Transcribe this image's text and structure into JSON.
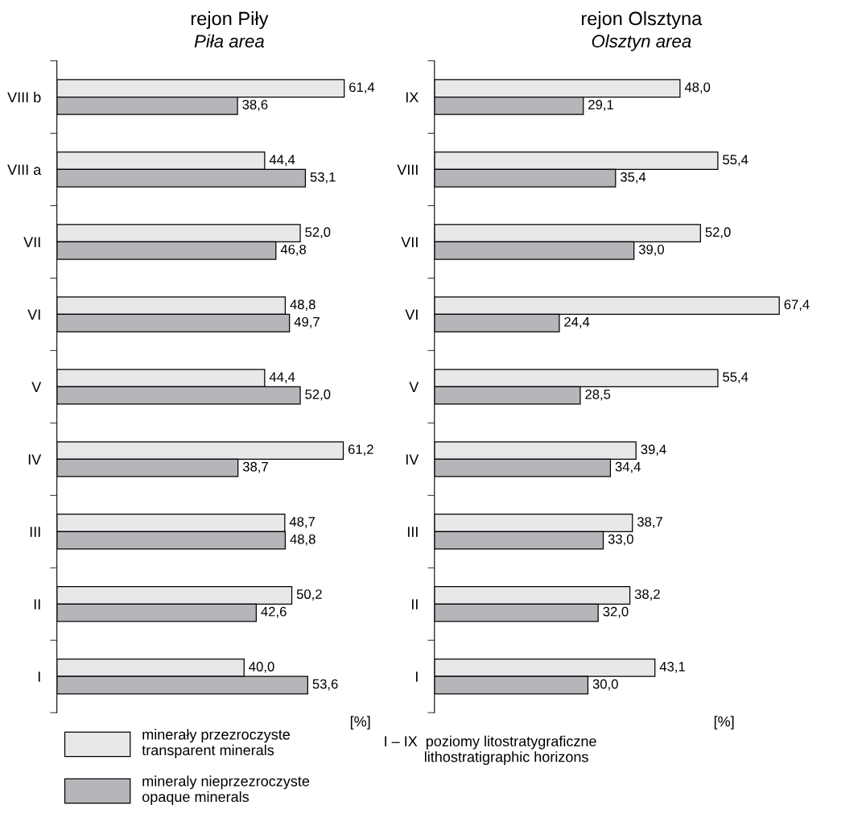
{
  "chart_data": [
    {
      "type": "bar",
      "orientation": "horizontal",
      "title": "rejon Piły",
      "subtitle": "Piła area",
      "xlabel": "[%]",
      "legend": "bottom",
      "grid": false,
      "tick_labels": "y",
      "categories": [
        "VIII b",
        "VIII a",
        "VII",
        "VI",
        "V",
        "IV",
        "III",
        "II",
        "I"
      ],
      "series": [
        {
          "name": "minerały przezroczyste\ntransparent minerals",
          "color": "#e8e8ea",
          "values": [
            61.4,
            44.4,
            52.0,
            48.8,
            44.4,
            61.2,
            48.7,
            50.2,
            40.0
          ],
          "value_labels": [
            "61,4",
            "44,4",
            "52,0",
            "48,8",
            "44,4",
            "61,2",
            "48,7",
            "50,2",
            "40,0"
          ]
        },
        {
          "name": "mineraly nieprzezroczyste\nopaque minerals",
          "color": "#b6b6ba",
          "values": [
            38.6,
            53.1,
            46.8,
            49.7,
            52.0,
            38.7,
            48.8,
            42.6,
            53.6
          ],
          "value_labels": [
            "38,6",
            "53,1",
            "46,8",
            "49,7",
            "52,0",
            "38,7",
            "48,8",
            "42,6",
            "53,6"
          ]
        }
      ]
    },
    {
      "type": "bar",
      "orientation": "horizontal",
      "title": "rejon Olsztyna",
      "subtitle": "Olsztyn area",
      "xlabel": "[%]",
      "grid": false,
      "tick_labels": "y",
      "annotations": [
        "I – IX  poziomy litostratygraficzne\n          lithostratigraphic horizons"
      ],
      "categories": [
        "IX",
        "VIII",
        "VII",
        "VI",
        "V",
        "IV",
        "III",
        "II",
        "I"
      ],
      "series": [
        {
          "color": "#e8e8ea",
          "values": [
            48.0,
            55.4,
            52.0,
            67.4,
            55.4,
            39.4,
            38.7,
            38.2,
            43.1
          ],
          "value_labels": [
            "48,0",
            "55,4",
            "52,0",
            "67,4",
            "55,4",
            "39,4",
            "38,7",
            "38,2",
            "43,1"
          ]
        },
        {
          "color": "#b6b6ba",
          "values": [
            29.1,
            35.4,
            39.0,
            24.4,
            28.5,
            34.4,
            33.0,
            32.0,
            30.0
          ],
          "value_labels": [
            "29,1",
            "35,4",
            "39,0",
            "24,4",
            "28,5",
            "34,4",
            "33,0",
            "32,0",
            "30,0"
          ]
        }
      ]
    }
  ]
}
